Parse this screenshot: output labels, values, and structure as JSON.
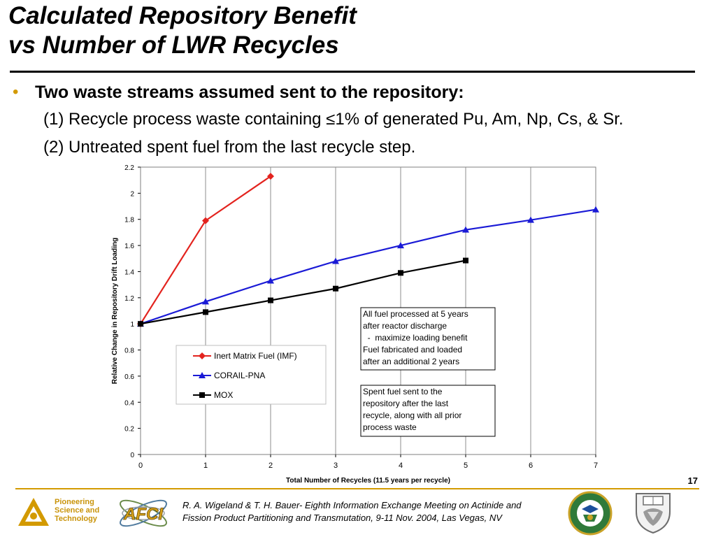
{
  "slide": {
    "title_line1": "Calculated Repository Benefit",
    "title_line2": "vs Number of LWR Recycles",
    "bullet": "Two waste streams assumed sent to the repository:",
    "sub1": "(1) Recycle process waste containing  ≤1% of generated Pu, Am, Np, Cs, & Sr.",
    "sub2": "(2) Untreated spent fuel from the last recycle step.",
    "page_number": "17"
  },
  "footer": {
    "org_line1": "Pioneering",
    "org_line2": "Science and",
    "org_line3": "Technology",
    "afci_logo_text": "AFCI",
    "citation_line1": "R. A. Wigeland & T. H. Bauer- Eighth Information Exchange Meeting on Actinide and",
    "citation_line2": "Fission Product Partitioning and Transmutation, 9-11 Nov. 2004, Las Vegas, NV",
    "accent_color": "#d39a00"
  },
  "chart_data": {
    "type": "line",
    "title": "",
    "xlabel": "Total Number of Recycles (11.5 years per recycle)",
    "ylabel": "Relative Change in Repository Drift Loading",
    "xlim": [
      0,
      7
    ],
    "ylim": [
      0,
      2.2
    ],
    "xticks": [
      "0",
      "1",
      "2",
      "3",
      "4",
      "5",
      "6",
      "7"
    ],
    "yticks": [
      "0",
      "0.2",
      "0.4",
      "0.6",
      "0.8",
      "1",
      "1.2",
      "1.4",
      "1.6",
      "1.8",
      "2",
      "2.2"
    ],
    "grid": "vertical",
    "legend_position": "center-left",
    "series": [
      {
        "name": "Inert Matrix Fuel (IMF)",
        "color": "#e3231e",
        "marker": "diamond",
        "x": [
          0,
          1,
          2
        ],
        "y": [
          1.0,
          1.79,
          2.13
        ]
      },
      {
        "name": "CORAIL-PNA",
        "color": "#1a1ad6",
        "marker": "triangle",
        "x": [
          0,
          1,
          2,
          3,
          4,
          5,
          6,
          7
        ],
        "y": [
          1.0,
          1.17,
          1.33,
          1.48,
          1.6,
          1.72,
          1.795,
          1.875
        ]
      },
      {
        "name": "MOX",
        "color": "#000000",
        "marker": "square",
        "x": [
          0,
          1,
          2,
          3,
          4,
          5
        ],
        "y": [
          1.0,
          1.09,
          1.18,
          1.27,
          1.39,
          1.485
        ]
      }
    ],
    "annotations": [
      {
        "lines": [
          "All fuel processed at 5 years",
          "after reactor discharge",
          "  -  maximize loading benefit",
          "Fuel fabricated and loaded",
          "after an additional 2 years"
        ]
      },
      {
        "lines": [
          "Spent fuel sent to the",
          "repository after the last",
          "recycle, along with all prior",
          "process waste"
        ]
      }
    ]
  }
}
